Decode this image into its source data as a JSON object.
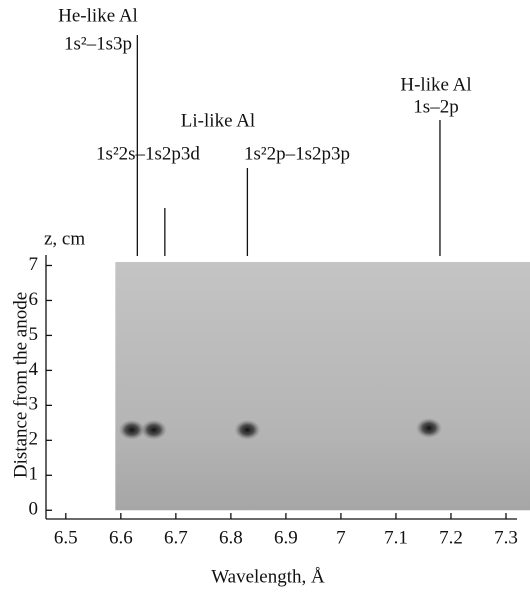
{
  "chart_data": {
    "type": "spectrogram",
    "xlabel": "Wavelength, Å",
    "ylabel": "Distance from the anode",
    "yunit": "z, cm",
    "xlim": [
      6.464,
      7.32
    ],
    "ylim": [
      -0.25,
      7.3
    ],
    "xticks": [
      6.5,
      6.6,
      6.7,
      6.8,
      6.9,
      7.0,
      7.1,
      7.2,
      7.3
    ],
    "yticks": [
      0,
      1,
      2,
      3,
      4,
      5,
      6,
      7
    ],
    "image_extent": {
      "x": [
        6.59,
        7.32
      ],
      "y": [
        0,
        7.1
      ]
    },
    "spots": {
      "x": [
        6.62,
        6.66,
        6.83,
        7.16
      ],
      "z": [
        2.3,
        2.3,
        2.3,
        2.35
      ]
    },
    "group_label": "Li-like Al",
    "annotations": [
      {
        "x": 6.63,
        "lines": [
          "He-like Al",
          "1s²–1s3p"
        ]
      },
      {
        "x": 6.68,
        "lines": [
          "1s²2s–1s2p3d"
        ]
      },
      {
        "x": 6.83,
        "lines": [
          "1s²2p–1s2p3p"
        ]
      },
      {
        "x": 7.18,
        "lines": [
          "H-like Al",
          "1s–2p"
        ]
      }
    ]
  }
}
